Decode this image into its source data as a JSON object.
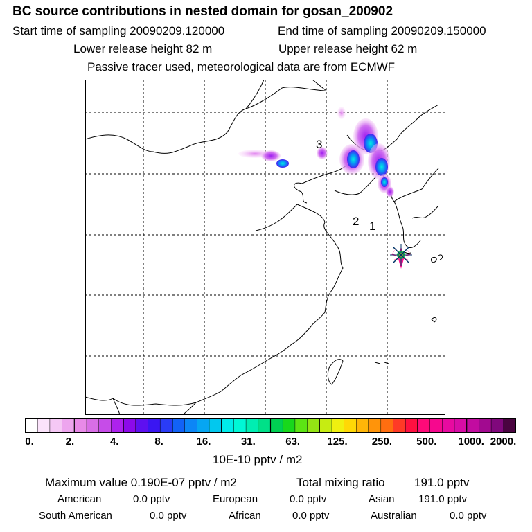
{
  "header": {
    "title": "BC  source contributions in nested domain for gosan_200902",
    "start": "Start time of sampling 20090209.120000",
    "end": "End time of sampling 20090209.150000",
    "lower": "Lower release height   82 m",
    "upper": "Upper release height   62 m",
    "note": "Passive tracer used, meteorological data are from ECMWF"
  },
  "map": {
    "labels": [
      "1",
      "2",
      "3"
    ]
  },
  "colorbar": {
    "ticks": [
      "0.",
      "2.",
      "4.",
      "8.",
      "16.",
      "31.",
      "63.",
      "125.",
      "250.",
      "500.",
      "1000.",
      "2000."
    ],
    "units": "10E-10 pptv / m2",
    "colors": [
      "#ffffff",
      "#fbe3fb",
      "#f5c8f5",
      "#eda5ee",
      "#e88ae8",
      "#d86ee6",
      "#c64ce8",
      "#ad22ee",
      "#8c0aea",
      "#5e10f0",
      "#3a16f2",
      "#2a3cf6",
      "#1262f6",
      "#0c86f6",
      "#06a6f2",
      "#02c8ee",
      "#00ecea",
      "#00f8d6",
      "#00eeb2",
      "#00e088",
      "#00d052",
      "#18d81c",
      "#5ce414",
      "#94e414",
      "#c6ec12",
      "#f0f010",
      "#ffd806",
      "#ffb608",
      "#ff940a",
      "#ff6e10",
      "#ff3a26",
      "#ff1040",
      "#ff0a78",
      "#f6088e",
      "#e80aa0",
      "#d80ca6",
      "#c20ca0",
      "#a20a90",
      "#80087c",
      "#4a0440"
    ]
  },
  "summary": {
    "max_value": "Maximum value  0.190E-07 pptv / m2",
    "total_label": "Total mixing ratio",
    "total_value": "191.0 pptv",
    "rows": [
      [
        {
          "label": "American",
          "value": "0.0 pptv"
        },
        {
          "label": "European",
          "value": "0.0 pptv"
        },
        {
          "label": "Asian",
          "value": "191.0 pptv"
        }
      ],
      [
        {
          "label": "South American",
          "value": "0.0 pptv"
        },
        {
          "label": "African",
          "value": "0.0 pptv"
        },
        {
          "label": "Australian",
          "value": "0.0 pptv"
        }
      ]
    ]
  }
}
